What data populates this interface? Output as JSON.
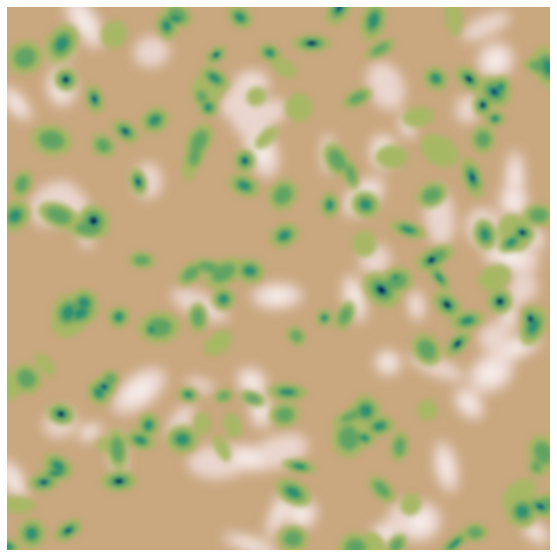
{
  "image": {
    "kind": "procedural-noise-field",
    "palette": {
      "background": "#ffffff",
      "sand": "#c9a77f",
      "light_pink": "#ead6cf",
      "highlight": "#f7efec",
      "olive": "#a7b865",
      "green": "#5fa363",
      "teal": "#2e8f73",
      "deep_blue": "#123a7a",
      "navy": "#0a1f5c"
    },
    "light_patch_count": 60,
    "blob_count": 150
  }
}
